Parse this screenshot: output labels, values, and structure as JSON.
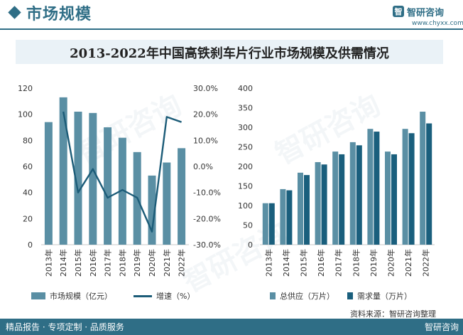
{
  "header": {
    "section_title": "市场规模",
    "brand_logo_glyph": "智",
    "brand_name": "智研咨询",
    "brand_url": "www.chyxx.com"
  },
  "watermark_text": "智研咨询",
  "colors": {
    "primary": "#2f6e86",
    "bar_market": "#5a8fa4",
    "bar_supply": "#5a8fa4",
    "bar_demand": "#1a5f7d",
    "line": "#1c5c78",
    "banner_bg": "#eaf2f7"
  },
  "chart_data": [
    {
      "type": "bar",
      "title": "2013-2022年中国高铁刹车片行业市场规模及供需情况",
      "categories": [
        "2013年",
        "2014年",
        "2015年",
        "2016年",
        "2017年",
        "2018年",
        "2019年",
        "2020年",
        "2021年",
        "2022年"
      ],
      "series": [
        {
          "name": "市场规模（亿元）",
          "type": "bar",
          "axis": "left",
          "values": [
            94,
            113,
            102,
            101,
            90,
            82,
            71,
            53,
            63,
            74
          ]
        },
        {
          "name": "增速（%）",
          "type": "line",
          "axis": "right",
          "values": [
            null,
            21.0,
            -10.0,
            -1.0,
            -12.0,
            -9.0,
            -12.0,
            -25.0,
            19.0,
            17.0
          ]
        }
      ],
      "ylim_left": [
        0,
        120
      ],
      "ylim_right": [
        -30,
        30
      ],
      "yticks_left": [
        "0",
        "20",
        "40",
        "60",
        "80",
        "100",
        "120"
      ],
      "yticks_right": [
        "-30.0%",
        "-20.0%",
        "-10.0%",
        "0.0%",
        "10.0%",
        "20.0%",
        "30.0%"
      ],
      "grid": false,
      "legend": "bottom"
    },
    {
      "type": "bar",
      "categories": [
        "2013年",
        "2014年",
        "2015年",
        "2016年",
        "2017年",
        "2018年",
        "2019年",
        "2020年",
        "2021年",
        "2022年"
      ],
      "series": [
        {
          "name": "总供应（万片）",
          "values": [
            106,
            142,
            184,
            211,
            238,
            262,
            296,
            238,
            296,
            340
          ]
        },
        {
          "name": "需求量（万片）",
          "values": [
            106,
            139,
            178,
            205,
            231,
            254,
            289,
            231,
            285,
            310
          ]
        }
      ],
      "ylim": [
        0,
        400
      ],
      "yticks": [
        "0",
        "50",
        "100",
        "150",
        "200",
        "250",
        "300",
        "350",
        "400"
      ],
      "grid": false,
      "legend": "bottom"
    }
  ],
  "footer": {
    "left": "精品报告 · 专项定制 · 品质服务",
    "right": "智研咨询"
  },
  "source": "资料来源：智研咨询整理"
}
